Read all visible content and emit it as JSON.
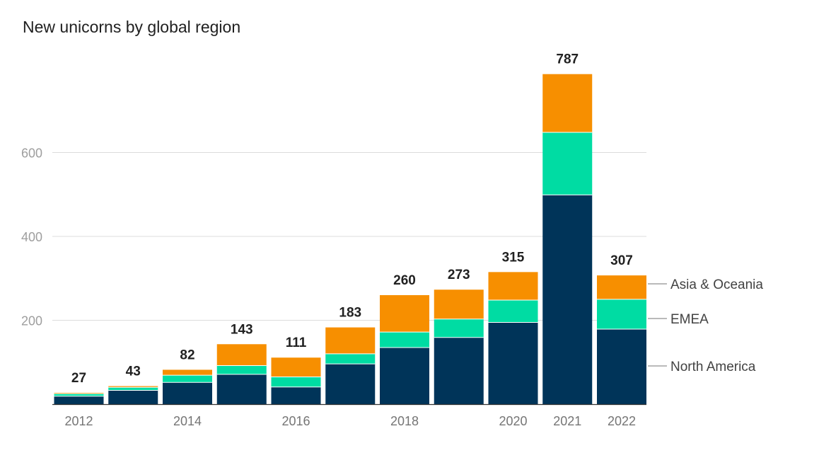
{
  "chart_data": {
    "type": "bar",
    "stacked": true,
    "title": "New unicorns by global region",
    "xlabel": "",
    "ylabel": "",
    "categories": [
      "2012",
      "2013",
      "2014",
      "2015",
      "2016",
      "2017",
      "2018",
      "2019",
      "2020",
      "2021",
      "2022"
    ],
    "x_tick_labels": [
      "2012",
      "",
      "2014",
      "",
      "2016",
      "",
      "2018",
      "",
      "2020",
      "2021",
      "2022"
    ],
    "y_ticks": [
      200,
      400,
      600
    ],
    "ylim": [
      0,
      800
    ],
    "grid": true,
    "legend_placement": "right, inline labels",
    "series": [
      {
        "name": "North America",
        "color": "#003459",
        "values": [
          19,
          33,
          52,
          71,
          41,
          96,
          135,
          159,
          195,
          499,
          179
        ]
      },
      {
        "name": "EMEA",
        "color": "#00DCA3",
        "values": [
          6,
          7,
          17,
          21,
          24,
          24,
          37,
          44,
          53,
          149,
          71
        ]
      },
      {
        "name": "Asia & Oceania",
        "color": "#F78F00",
        "values": [
          2,
          3,
          13,
          51,
          46,
          63,
          88,
          70,
          67,
          139,
          57
        ]
      }
    ],
    "totals": [
      27,
      43,
      82,
      143,
      111,
      183,
      260,
      273,
      315,
      787,
      307
    ]
  }
}
